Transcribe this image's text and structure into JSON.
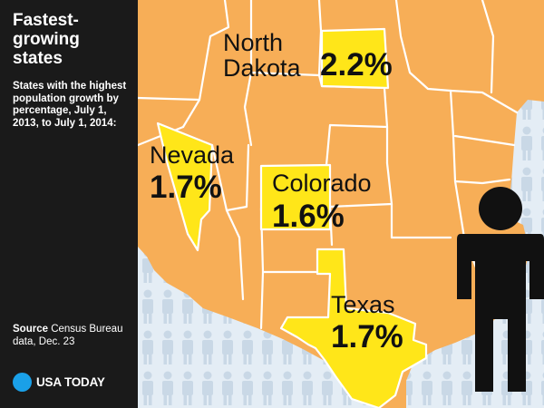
{
  "title": "Fastest-growing states",
  "description": "States with the highest population growth by percentage, July 1, 2013, to July 1, 2014:",
  "source": {
    "label": "Source",
    "text": "Census Bureau data, Dec. 23"
  },
  "brand": "USA TODAY",
  "states": [
    {
      "name": "North Dakota",
      "name_line1": "North",
      "name_line2": "Dakota",
      "growth": "2.2%",
      "growth_value": 2.2
    },
    {
      "name": "Nevada",
      "growth": "1.7%",
      "growth_value": 1.7
    },
    {
      "name": "Colorado",
      "growth": "1.6%",
      "growth_value": 1.6
    },
    {
      "name": "Texas",
      "growth": "1.7%",
      "growth_value": 1.7
    }
  ],
  "colors": {
    "sidebar": "#1a1a1a",
    "land": "#f7ae57",
    "highlight": "#ffe619",
    "border": "#ffffff",
    "background": "#e4edf5",
    "figure_pattern": "#c9d8e6",
    "person": "#111111",
    "brand_dot": "#1aa0e8"
  }
}
